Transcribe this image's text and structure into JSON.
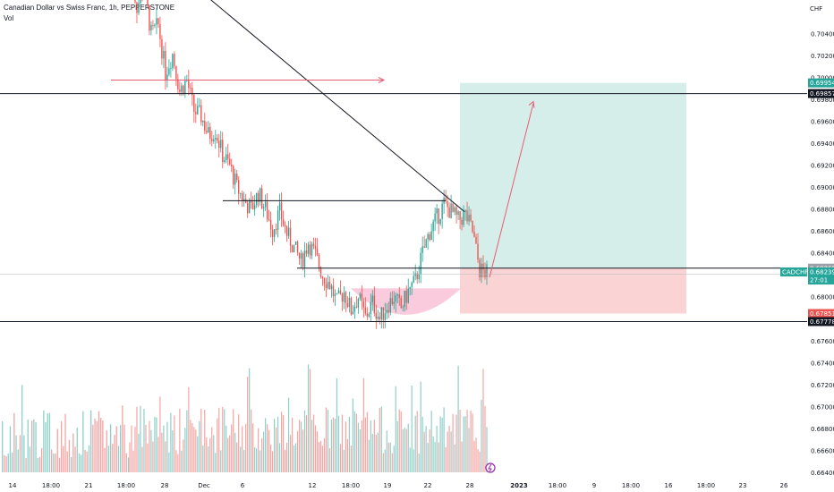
{
  "header": {
    "title": "Canadian Dollar vs Swiss Franc, 1h, PEPPERSTONE",
    "volume_label": "Vol"
  },
  "colors": {
    "up": "#26a69a",
    "down": "#ef5350",
    "vol_up": "#8fcfc9",
    "vol_down": "#f2a5a3",
    "profit_zone": "#d6eeea",
    "loss_zone": "#fad4d4",
    "bowl": "#f7b9d0",
    "line": "#131722",
    "red_arrow": "#e85b73",
    "ticker_tag": "#26a69a",
    "alert_icon": "#9c27b0"
  },
  "chart_data": {
    "type": "candlestick",
    "symbol": "CADCHF",
    "currency": "CHF",
    "y_axis_labels": [
      "0.70400",
      "0.70200",
      "0.70000",
      "0.69800",
      "0.69600",
      "0.69400",
      "0.69200",
      "0.69000",
      "0.68800",
      "0.68600",
      "0.68400",
      "0.68200",
      "0.68000",
      "0.67800",
      "0.67600",
      "0.67400",
      "0.67200",
      "0.67000",
      "0.66800",
      "0.66600",
      "0.66400"
    ],
    "x_axis_labels": [
      "14",
      "18:00",
      "21",
      "18:00",
      "28",
      "Dec",
      "6",
      "12",
      "18:00",
      "19",
      "22",
      "28",
      "2023",
      "18:00",
      "9",
      "18:00",
      "16",
      "18:00",
      "23",
      "26"
    ],
    "ohlc_path": [
      0.71,
      0.7065,
      0.7082,
      0.704,
      0.7048,
      0.7005,
      0.7022,
      0.6988,
      0.6998,
      0.697,
      0.6965,
      0.6948,
      0.6952,
      0.693,
      0.692,
      0.69,
      0.6888,
      0.688,
      0.6895,
      0.688,
      0.6862,
      0.6878,
      0.6858,
      0.6845,
      0.6832,
      0.685,
      0.6838,
      0.682,
      0.6812,
      0.6795,
      0.6805,
      0.6788,
      0.68,
      0.6782,
      0.6795,
      0.678,
      0.6792,
      0.68,
      0.679,
      0.6805,
      0.6815,
      0.684,
      0.686,
      0.6872,
      0.6885,
      0.6878,
      0.687,
      0.6875,
      0.686,
      0.6825,
      0.6822
    ],
    "annotations": {
      "downtrend_line": {
        "from": [
          "2022-11-29",
          0.7092
        ],
        "to": [
          "2022-12-28",
          0.6878
        ]
      },
      "resistance_lines": [
        {
          "label": "0.69857",
          "price": 0.69857
        },
        {
          "price": 0.6888
        },
        {
          "price": 0.68265
        }
      ],
      "support_line": {
        "label": "0.67778",
        "price": 0.67778
      },
      "red_arrow_line": {
        "price": 0.6998
      },
      "long_position": {
        "entry_label": "0.68265",
        "target_label": "0.69954",
        "stop_label": "0.67851",
        "entry": 0.68265,
        "target": 0.69954,
        "stop": 0.67851
      },
      "projection_arrow": {
        "to_price": 0.698
      },
      "bowl": "rounded bottom"
    },
    "tags": [
      {
        "label": "0.69954",
        "kind": "target"
      },
      {
        "label": "0.69857",
        "kind": "line"
      },
      {
        "label": "0.68265",
        "kind": "entry"
      },
      {
        "label": "CADCHF",
        "kind": "ticker"
      },
      {
        "label": "0.68239",
        "kind": "price"
      },
      {
        "label": "27:01",
        "kind": "countdown"
      },
      {
        "label": "0.67851",
        "kind": "stop"
      },
      {
        "label": "0.67778",
        "kind": "line"
      }
    ]
  }
}
